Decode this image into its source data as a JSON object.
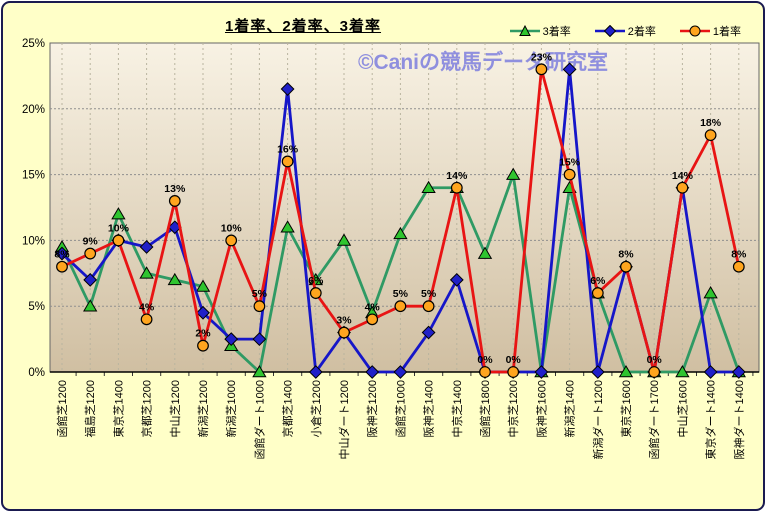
{
  "window": {
    "panel_bg": "#ffffc8",
    "border_color": "#1a1a50"
  },
  "header": {
    "title": "1着率、2着率、3着率"
  },
  "watermark": {
    "text": "©Caniの競馬データ研究室",
    "color": "#8a8ade"
  },
  "legend": {
    "items": [
      {
        "label": "3着率",
        "marker": "triangle",
        "line_color": "#2f9a64",
        "marker_color": "#2fc42f"
      },
      {
        "label": "2着率",
        "marker": "diamond",
        "line_color": "#1616c8",
        "marker_color": "#2020c8"
      },
      {
        "label": "1着率",
        "marker": "circle",
        "line_color": "#e81414",
        "marker_color": "#ffa51e"
      }
    ]
  },
  "chart_data": {
    "type": "line",
    "title": "1着率、2着率、3着率",
    "xlabel": "",
    "ylabel": "",
    "ylim": [
      0,
      25
    ],
    "grid": true,
    "legend_position": "top-right",
    "y_tick_labels": [
      "0%",
      "5%",
      "10%",
      "15%",
      "20%",
      "25%"
    ],
    "y_ticks": [
      0,
      5,
      10,
      15,
      20,
      25
    ],
    "categories": [
      "函館芝1200",
      "福島芝1200",
      "東京芝1400",
      "京都芝1200",
      "中山芝1200",
      "新潟芝1200",
      "新潟芝1000",
      "函館ダート1000",
      "京都芝1400",
      "小倉芝1200",
      "中山ダート1200",
      "阪神芝1200",
      "函館芝1000",
      "阪神芝1400",
      "中京芝1400",
      "函館芝1800",
      "中京芝1200",
      "阪神芝1600",
      "新潟芝1400",
      "新潟ダート1200",
      "東京芝1600",
      "函館ダート1700",
      "中山芝1600",
      "東京ダート1400",
      "阪神ダート1400"
    ],
    "series": [
      {
        "name": "3着率",
        "marker": "triangle",
        "line_color": "#2f9a64",
        "marker_color": "#2fc42f",
        "values": [
          9.5,
          5,
          12,
          7.5,
          7,
          6.5,
          2,
          0,
          11,
          7,
          10,
          4.5,
          10.5,
          14,
          14,
          9,
          15,
          0,
          14,
          6,
          0,
          0,
          0,
          6,
          0
        ]
      },
      {
        "name": "2着率",
        "marker": "diamond",
        "line_color": "#1616c8",
        "marker_color": "#2020c8",
        "values": [
          9,
          7,
          10,
          9.5,
          11,
          4.5,
          2.5,
          2.5,
          21.5,
          0,
          3,
          0,
          0,
          3,
          7,
          0,
          0,
          0,
          23,
          0,
          8,
          0,
          14,
          0,
          0
        ]
      },
      {
        "name": "1着率",
        "marker": "circle",
        "line_color": "#e81414",
        "marker_color": "#ffa51e",
        "values": [
          8,
          9,
          10,
          4,
          13,
          2,
          10,
          5,
          16,
          6,
          3,
          4,
          5,
          5,
          14,
          0,
          0,
          23,
          15,
          6,
          8,
          0,
          14,
          18,
          8
        ],
        "data_labels": [
          "8%",
          "9%",
          "10%",
          "4%",
          "13%",
          "2%",
          "10%",
          "5%",
          "16%",
          "6%",
          "3%",
          "4%",
          "5%",
          "5%",
          "14%",
          "0%",
          "0%",
          "23%",
          "15%",
          "6%",
          "8%",
          "0%",
          "14%",
          "18%",
          "8%"
        ]
      }
    ]
  }
}
